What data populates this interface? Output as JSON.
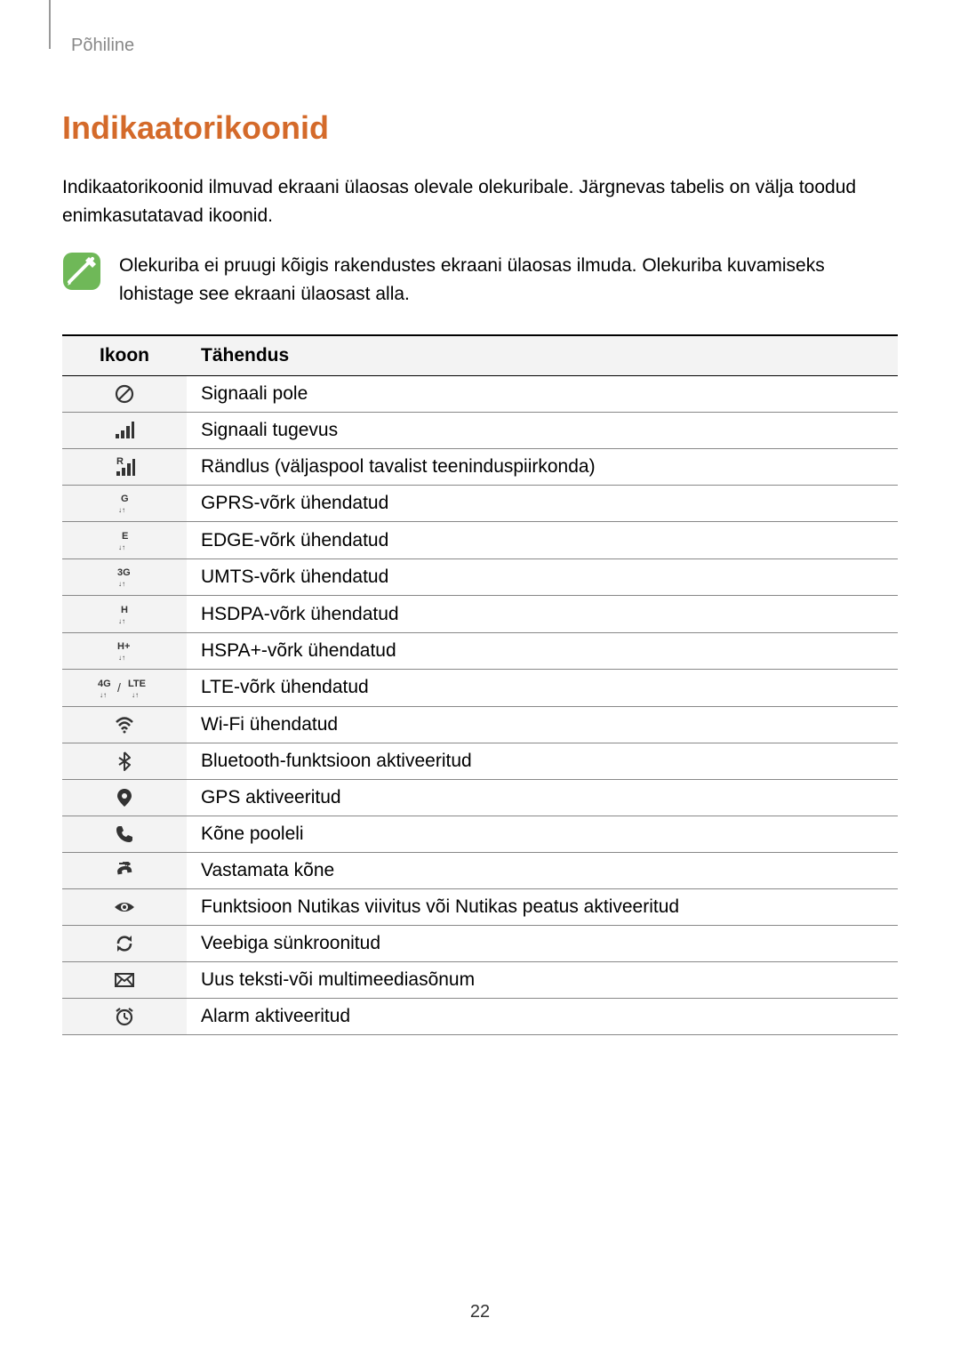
{
  "breadcrumb": "Põhiline",
  "heading": "Indikaatorikoonid",
  "intro": "Indikaatorikoonid ilmuvad ekraani ülaosas olevale olekuribale. Järgnevas tabelis on välja toodud enimkasutatavad ikoonid.",
  "note": "Olekuriba ei pruugi kõigis rakendustes ekraani ülaosas ilmuda. Olekuriba kuvamiseks lohistage see ekraani ülaosast alla.",
  "table": {
    "header_icon": "Ikoon",
    "header_meaning": "Tähendus",
    "rows": [
      {
        "icon": "no-signal",
        "label": "Signaali pole"
      },
      {
        "icon": "signal",
        "label": "Signaali tugevus"
      },
      {
        "icon": "roaming",
        "label": "Rändlus (väljaspool tavalist teeninduspiirkonda)"
      },
      {
        "icon": "gprs",
        "label": "GPRS-võrk ühendatud"
      },
      {
        "icon": "edge",
        "label": "EDGE-võrk ühendatud"
      },
      {
        "icon": "umts",
        "label": "UMTS-võrk ühendatud"
      },
      {
        "icon": "hsdpa",
        "label": "HSDPA-võrk ühendatud"
      },
      {
        "icon": "hspa",
        "label": "HSPA+-võrk ühendatud"
      },
      {
        "icon": "lte",
        "label": "LTE-võrk ühendatud"
      },
      {
        "icon": "wifi",
        "label": "Wi-Fi ühendatud"
      },
      {
        "icon": "bluetooth",
        "label": "Bluetooth-funktsioon aktiveeritud"
      },
      {
        "icon": "gps",
        "label": "GPS aktiveeritud"
      },
      {
        "icon": "call",
        "label": "Kõne pooleli"
      },
      {
        "icon": "missed-call",
        "label": "Vastamata kõne"
      },
      {
        "icon": "smart-stay",
        "label": "Funktsioon Nutikas viivitus või Nutikas peatus aktiveeritud"
      },
      {
        "icon": "sync",
        "label": "Veebiga sünkroonitud"
      },
      {
        "icon": "message",
        "label": "Uus teksti-või multimeediasõnum"
      },
      {
        "icon": "alarm",
        "label": "Alarm aktiveeritud"
      }
    ]
  },
  "pageNumber": "22",
  "colors": {
    "heading": "#d46a2a",
    "noteIconBg": "#6fb858",
    "noteIconStroke": "#ffffff",
    "iconColor": "#333333",
    "headerBg": "#f3f3f3"
  }
}
